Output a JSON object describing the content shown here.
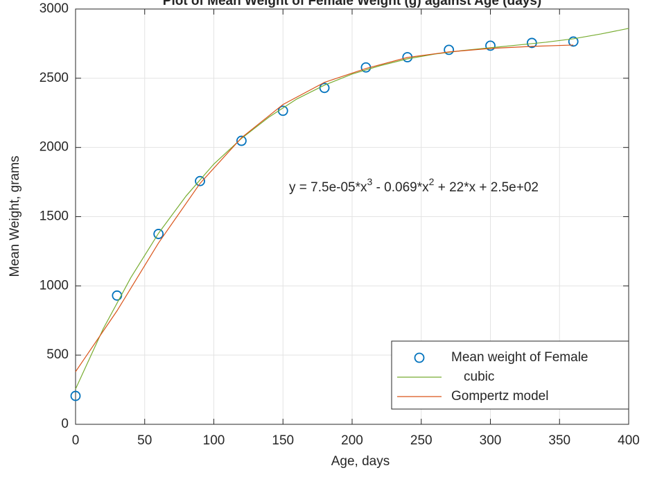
{
  "chart_data": {
    "type": "line",
    "title": "Plot of Mean Weight of Female Weight (g) against Age (days)",
    "xlabel": "Age, days",
    "ylabel": "Mean Weight, grams",
    "xlim": [
      0,
      400
    ],
    "ylim": [
      0,
      3000
    ],
    "xticks": [
      0,
      50,
      100,
      150,
      200,
      250,
      300,
      350,
      400
    ],
    "yticks": [
      0,
      500,
      1000,
      1500,
      2000,
      2500,
      3000
    ],
    "grid": true,
    "legend": "lower right",
    "annotation": [
      "y = 7.5e-05*x",
      "3",
      " - 0.069*x",
      "2",
      " + 22*x + 2.5e+02"
    ],
    "series": [
      {
        "name": "Mean weight of Female",
        "color": "#0072bd",
        "style": "marker",
        "x": [
          0,
          30,
          60,
          90,
          120,
          150,
          180,
          210,
          240,
          270,
          300,
          330,
          360
        ],
        "values": [
          205,
          930,
          1375,
          1757,
          2048,
          2265,
          2430,
          2578,
          2652,
          2705,
          2735,
          2755,
          2765
        ]
      },
      {
        "name": "cubic",
        "color": "#77ac30",
        "style": "line",
        "x": [
          0,
          20,
          40,
          60,
          80,
          100,
          120,
          140,
          160,
          180,
          200,
          220,
          240,
          260,
          280,
          300,
          320,
          340,
          360,
          380,
          400
        ],
        "values": [
          255,
          690,
          1060,
          1380,
          1650,
          1880,
          2065,
          2220,
          2350,
          2450,
          2530,
          2590,
          2640,
          2675,
          2700,
          2720,
          2740,
          2760,
          2785,
          2820,
          2860
        ]
      },
      {
        "name": "Gompertz model",
        "color": "#d95319",
        "style": "line",
        "x": [
          0,
          30,
          60,
          90,
          120,
          150,
          180,
          210,
          240,
          270,
          300,
          330,
          360
        ],
        "values": [
          380,
          820,
          1310,
          1740,
          2070,
          2310,
          2470,
          2570,
          2650,
          2690,
          2715,
          2730,
          2740
        ]
      }
    ]
  }
}
